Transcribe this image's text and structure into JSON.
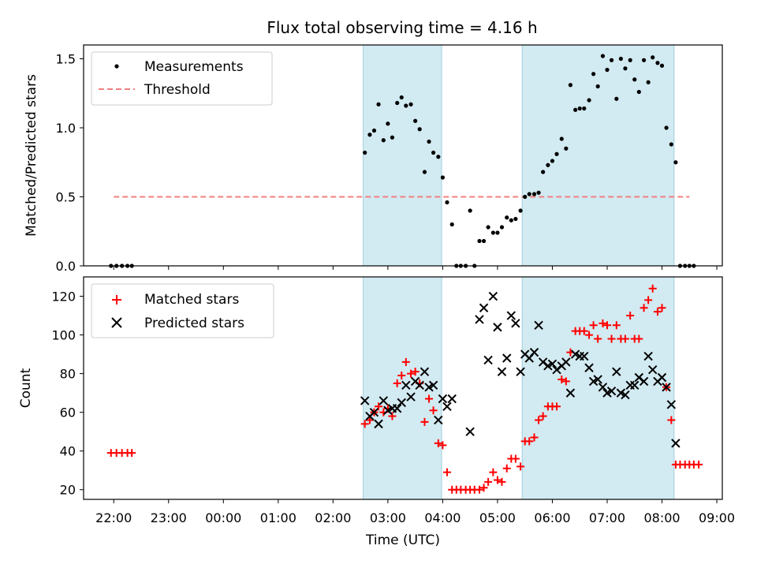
{
  "title": "Flux total observing time = 4.16 h",
  "chart_data": [
    {
      "type": "scatter",
      "panel": "top",
      "ylabel": "Matched/Predicted stars",
      "xlabel": "",
      "x_unit": "hours since 22:00 UTC",
      "xlim": [
        -0.55,
        11.1
      ],
      "ylim": [
        0,
        1.6
      ],
      "yticks": [
        0.0,
        0.5,
        1.0,
        1.5
      ],
      "ytick_labels": [
        "0.0",
        "0.5",
        "1.0",
        "1.5"
      ],
      "shaded_intervals": [
        [
          4.55,
          5.98
        ],
        [
          7.45,
          10.22
        ]
      ],
      "legend": {
        "location": "top-left",
        "measurements_label": "Measurements",
        "threshold_label": "Threshold"
      },
      "threshold": {
        "value": 0.5,
        "x_range": [
          0.0,
          10.5
        ],
        "color": "#f08080"
      },
      "series": [
        {
          "name": "Measurements",
          "marker": "dot",
          "color": "#000000",
          "points": [
            [
              -0.05,
              0
            ],
            [
              0.05,
              0
            ],
            [
              0.15,
              0
            ],
            [
              0.25,
              0
            ],
            [
              0.33,
              0
            ],
            [
              4.58,
              0.82
            ],
            [
              4.67,
              0.95
            ],
            [
              4.75,
              0.98
            ],
            [
              4.83,
              1.17
            ],
            [
              4.92,
              0.91
            ],
            [
              5.0,
              1.03
            ],
            [
              5.08,
              0.93
            ],
            [
              5.17,
              1.18
            ],
            [
              5.25,
              1.22
            ],
            [
              5.33,
              1.16
            ],
            [
              5.42,
              1.17
            ],
            [
              5.5,
              1.05
            ],
            [
              5.58,
              0.99
            ],
            [
              5.67,
              0.68
            ],
            [
              5.75,
              0.9
            ],
            [
              5.83,
              0.82
            ],
            [
              5.92,
              0.79
            ],
            [
              6.0,
              0.64
            ],
            [
              6.08,
              0.46
            ],
            [
              6.17,
              0.3
            ],
            [
              6.25,
              0
            ],
            [
              6.33,
              0
            ],
            [
              6.42,
              0
            ],
            [
              6.5,
              0.4
            ],
            [
              6.58,
              0
            ],
            [
              6.67,
              0.18
            ],
            [
              6.75,
              0.18
            ],
            [
              6.83,
              0.28
            ],
            [
              6.92,
              0.24
            ],
            [
              7.0,
              0.24
            ],
            [
              7.08,
              0.28
            ],
            [
              7.17,
              0.35
            ],
            [
              7.25,
              0.33
            ],
            [
              7.33,
              0.34
            ],
            [
              7.42,
              0.4
            ],
            [
              7.5,
              0.5
            ],
            [
              7.58,
              0.52
            ],
            [
              7.67,
              0.52
            ],
            [
              7.75,
              0.53
            ],
            [
              7.83,
              0.68
            ],
            [
              7.92,
              0.73
            ],
            [
              8.0,
              0.76
            ],
            [
              8.08,
              0.81
            ],
            [
              8.17,
              0.92
            ],
            [
              8.25,
              0.85
            ],
            [
              8.33,
              1.31
            ],
            [
              8.42,
              1.13
            ],
            [
              8.5,
              1.14
            ],
            [
              8.58,
              1.14
            ],
            [
              8.67,
              1.2
            ],
            [
              8.75,
              1.39
            ],
            [
              8.83,
              1.3
            ],
            [
              8.92,
              1.52
            ],
            [
              9.0,
              1.42
            ],
            [
              9.08,
              1.49
            ],
            [
              9.17,
              1.21
            ],
            [
              9.25,
              1.5
            ],
            [
              9.33,
              1.43
            ],
            [
              9.42,
              1.49
            ],
            [
              9.5,
              1.35
            ],
            [
              9.58,
              1.26
            ],
            [
              9.67,
              1.49
            ],
            [
              9.75,
              1.33
            ],
            [
              9.83,
              1.51
            ],
            [
              9.92,
              1.47
            ],
            [
              10.0,
              1.45
            ],
            [
              10.08,
              1.0
            ],
            [
              10.17,
              0.88
            ],
            [
              10.25,
              0.75
            ],
            [
              10.33,
              0
            ],
            [
              10.42,
              0
            ],
            [
              10.5,
              0
            ],
            [
              10.58,
              0
            ]
          ]
        }
      ]
    },
    {
      "type": "scatter",
      "panel": "bottom",
      "ylabel": "Count",
      "xlabel": "Time (UTC)",
      "x_unit": "hours since 22:00 UTC",
      "xlim": [
        -0.55,
        11.1
      ],
      "ylim": [
        15,
        130
      ],
      "yticks": [
        20,
        40,
        60,
        80,
        100,
        120
      ],
      "ytick_labels": [
        "20",
        "40",
        "60",
        "80",
        "100",
        "120"
      ],
      "xticks": [
        0,
        1,
        2,
        3,
        4,
        5,
        6,
        7,
        8,
        9,
        10,
        11
      ],
      "xtick_labels": [
        "22:00",
        "23:00",
        "00:00",
        "01:00",
        "02:00",
        "03:00",
        "04:00",
        "05:00",
        "06:00",
        "07:00",
        "08:00",
        "09:00"
      ],
      "shaded_intervals": [
        [
          4.55,
          5.98
        ],
        [
          7.45,
          10.22
        ]
      ],
      "legend": {
        "location": "top-left",
        "matched_label": "Matched stars",
        "predicted_label": "Predicted stars"
      },
      "series": [
        {
          "name": "Matched stars",
          "marker": "plus",
          "color": "#ff0000",
          "points": [
            [
              -0.05,
              39
            ],
            [
              0.05,
              39
            ],
            [
              0.15,
              39
            ],
            [
              0.25,
              39
            ],
            [
              0.33,
              39
            ],
            [
              4.58,
              54
            ],
            [
              4.67,
              56
            ],
            [
              4.75,
              60
            ],
            [
              4.83,
              63
            ],
            [
              4.92,
              60
            ],
            [
              5.0,
              62
            ],
            [
              5.08,
              58
            ],
            [
              5.17,
              75
            ],
            [
              5.25,
              79
            ],
            [
              5.33,
              86
            ],
            [
              5.42,
              80
            ],
            [
              5.5,
              81
            ],
            [
              5.58,
              75
            ],
            [
              5.67,
              55
            ],
            [
              5.75,
              67
            ],
            [
              5.83,
              61
            ],
            [
              5.92,
              44
            ],
            [
              6.0,
              43
            ],
            [
              6.08,
              29
            ],
            [
              6.17,
              20
            ],
            [
              6.25,
              20
            ],
            [
              6.33,
              20
            ],
            [
              6.42,
              20
            ],
            [
              6.5,
              20
            ],
            [
              6.58,
              20
            ],
            [
              6.67,
              20
            ],
            [
              6.75,
              21
            ],
            [
              6.83,
              24
            ],
            [
              6.92,
              29
            ],
            [
              7.0,
              25
            ],
            [
              7.08,
              24
            ],
            [
              7.17,
              31
            ],
            [
              7.25,
              36
            ],
            [
              7.33,
              36
            ],
            [
              7.42,
              32
            ],
            [
              7.5,
              45
            ],
            [
              7.58,
              45
            ],
            [
              7.67,
              47
            ],
            [
              7.75,
              56
            ],
            [
              7.83,
              58
            ],
            [
              7.92,
              63
            ],
            [
              8.0,
              63
            ],
            [
              8.08,
              63
            ],
            [
              8.17,
              77
            ],
            [
              8.25,
              76
            ],
            [
              8.33,
              91
            ],
            [
              8.42,
              102
            ],
            [
              8.5,
              102
            ],
            [
              8.58,
              102
            ],
            [
              8.67,
              100
            ],
            [
              8.75,
              105
            ],
            [
              8.83,
              98
            ],
            [
              8.92,
              106
            ],
            [
              9.0,
              105
            ],
            [
              9.08,
              98
            ],
            [
              9.17,
              105
            ],
            [
              9.25,
              98
            ],
            [
              9.33,
              98
            ],
            [
              9.42,
              110
            ],
            [
              9.5,
              98
            ],
            [
              9.58,
              98
            ],
            [
              9.67,
              114
            ],
            [
              9.75,
              118
            ],
            [
              9.83,
              124
            ],
            [
              9.92,
              112
            ],
            [
              10.0,
              114
            ],
            [
              10.08,
              73
            ],
            [
              10.17,
              56
            ],
            [
              10.25,
              33
            ],
            [
              10.33,
              33
            ],
            [
              10.42,
              33
            ],
            [
              10.5,
              33
            ],
            [
              10.58,
              33
            ],
            [
              10.67,
              33
            ]
          ]
        },
        {
          "name": "Predicted stars",
          "marker": "x",
          "color": "#000000",
          "points": [
            [
              4.58,
              66
            ],
            [
              4.67,
              58
            ],
            [
              4.75,
              60
            ],
            [
              4.83,
              54
            ],
            [
              4.92,
              66
            ],
            [
              5.0,
              61
            ],
            [
              5.08,
              62
            ],
            [
              5.17,
              62
            ],
            [
              5.25,
              65
            ],
            [
              5.33,
              74
            ],
            [
              5.42,
              68
            ],
            [
              5.5,
              76
            ],
            [
              5.58,
              74
            ],
            [
              5.67,
              81
            ],
            [
              5.75,
              73
            ],
            [
              5.83,
              74
            ],
            [
              5.92,
              56
            ],
            [
              6.0,
              67
            ],
            [
              6.08,
              63
            ],
            [
              6.17,
              67
            ],
            [
              6.5,
              50
            ],
            [
              6.67,
              108
            ],
            [
              6.75,
              114
            ],
            [
              6.83,
              87
            ],
            [
              6.92,
              120
            ],
            [
              7.0,
              104
            ],
            [
              7.08,
              81
            ],
            [
              7.17,
              88
            ],
            [
              7.25,
              110
            ],
            [
              7.33,
              106
            ],
            [
              7.42,
              81
            ],
            [
              7.5,
              90
            ],
            [
              7.58,
              88
            ],
            [
              7.67,
              91
            ],
            [
              7.75,
              105
            ],
            [
              7.83,
              86
            ],
            [
              7.92,
              84
            ],
            [
              8.0,
              85
            ],
            [
              8.08,
              82
            ],
            [
              8.17,
              84
            ],
            [
              8.25,
              86
            ],
            [
              8.33,
              70
            ],
            [
              8.42,
              90
            ],
            [
              8.5,
              89
            ],
            [
              8.58,
              89
            ],
            [
              8.67,
              83
            ],
            [
              8.75,
              76
            ],
            [
              8.83,
              77
            ],
            [
              8.92,
              73
            ],
            [
              9.0,
              70
            ],
            [
              9.08,
              71
            ],
            [
              9.17,
              81
            ],
            [
              9.25,
              70
            ],
            [
              9.33,
              69
            ],
            [
              9.42,
              74
            ],
            [
              9.5,
              74
            ],
            [
              9.58,
              78
            ],
            [
              9.67,
              76
            ],
            [
              9.75,
              89
            ],
            [
              9.83,
              82
            ],
            [
              9.92,
              76
            ],
            [
              10.0,
              78
            ],
            [
              10.08,
              73
            ],
            [
              10.17,
              64
            ],
            [
              10.25,
              44
            ]
          ]
        }
      ]
    }
  ]
}
